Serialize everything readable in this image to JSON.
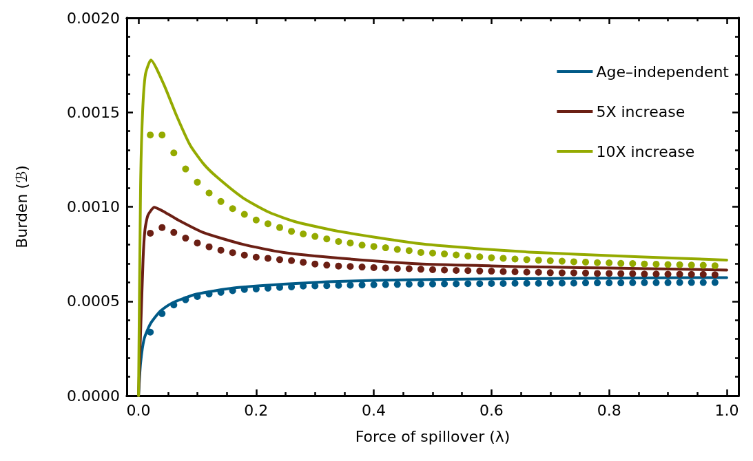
{
  "chart_data": {
    "type": "line",
    "xlabel": "Force of spillover (λ)",
    "ylabel": "Burden (ℬ)",
    "xlim": [
      -0.02,
      1.02
    ],
    "ylim": [
      0,
      0.002
    ],
    "xticks": [
      {
        "value": 0,
        "label": "0.0"
      },
      {
        "value": 0.05,
        "label": null
      },
      {
        "value": 0.1,
        "label": null
      },
      {
        "value": 0.15,
        "label": null
      },
      {
        "value": 0.2,
        "label": "0.2"
      },
      {
        "value": 0.25,
        "label": null
      },
      {
        "value": 0.3,
        "label": null
      },
      {
        "value": 0.35,
        "label": null
      },
      {
        "value": 0.4,
        "label": "0.4"
      },
      {
        "value": 0.45,
        "label": null
      },
      {
        "value": 0.5,
        "label": null
      },
      {
        "value": 0.55,
        "label": null
      },
      {
        "value": 0.6,
        "label": "0.6"
      },
      {
        "value": 0.65,
        "label": null
      },
      {
        "value": 0.7,
        "label": null
      },
      {
        "value": 0.75,
        "label": null
      },
      {
        "value": 0.8,
        "label": "0.8"
      },
      {
        "value": 0.85,
        "label": null
      },
      {
        "value": 0.9,
        "label": null
      },
      {
        "value": 0.95,
        "label": null
      },
      {
        "value": 1,
        "label": "1.0"
      }
    ],
    "yticks": [
      {
        "value": 0,
        "label": "0.0000"
      },
      {
        "value": 0.0001,
        "label": null
      },
      {
        "value": 0.0002,
        "label": null
      },
      {
        "value": 0.0003,
        "label": null
      },
      {
        "value": 0.0004,
        "label": null
      },
      {
        "value": 0.0005,
        "label": "0.0005"
      },
      {
        "value": 0.0006,
        "label": null
      },
      {
        "value": 0.0007,
        "label": null
      },
      {
        "value": 0.0008,
        "label": null
      },
      {
        "value": 0.0009,
        "label": null
      },
      {
        "value": 0.001,
        "label": "0.0010"
      },
      {
        "value": 0.0011,
        "label": null
      },
      {
        "value": 0.0012,
        "label": null
      },
      {
        "value": 0.0013,
        "label": null
      },
      {
        "value": 0.0014,
        "label": null
      },
      {
        "value": 0.0015,
        "label": "0.0015"
      },
      {
        "value": 0.0016,
        "label": null
      },
      {
        "value": 0.0017,
        "label": null
      },
      {
        "value": 0.0018,
        "label": null
      },
      {
        "value": 0.0019,
        "label": null
      },
      {
        "value": 0.002,
        "label": "0.0020"
      }
    ],
    "grid": false,
    "legend": "top right",
    "series": [
      {
        "name": "Age–independent",
        "marker": "none",
        "line_style": "solid",
        "color": "#005a87",
        "x": [
          0,
          0.0035,
          0.0098,
          0.0203,
          0.037,
          0.058,
          0.0996,
          0.162,
          0.246,
          0.321,
          0.4,
          0.5,
          0.6,
          0.7,
          0.8,
          0.9,
          1
        ],
        "values": [
          0,
          0.000173,
          0.000303,
          0.000381,
          0.000447,
          0.000492,
          0.000538,
          0.00057,
          0.00059,
          0.000603,
          0.00061,
          0.000615,
          0.000618,
          0.00062,
          0.000622,
          0.000624,
          0.000625
        ]
      },
      {
        "name": "5X increase",
        "marker": "none",
        "line_style": "solid",
        "color": "#6b1f14",
        "x": [
          0,
          0.0077,
          0.011,
          0.016,
          0.0269,
          0.0453,
          0.065,
          0.11,
          0.1776,
          0.245,
          0.346,
          0.477,
          0.6,
          0.664,
          0.75,
          0.851,
          1
        ],
        "values": [
          0,
          0.00072,
          0.00088,
          0.000955,
          0.000997,
          0.00097,
          0.000934,
          0.000864,
          0.000801,
          0.000759,
          0.000727,
          0.000698,
          0.000687,
          0.000682,
          0.000678,
          0.000673,
          0.000665
        ]
      },
      {
        "name": "10X increase",
        "marker": "none",
        "line_style": "solid",
        "color": "#94aa00",
        "x": [
          0,
          0.0035,
          0.0069,
          0.0117,
          0.021,
          0.0427,
          0.065,
          0.0876,
          0.11,
          0.1326,
          0.1776,
          0.2226,
          0.2676,
          0.346,
          0.477,
          0.57,
          0.664,
          0.75,
          0.851,
          1
        ],
        "values": [
          0,
          0.00111,
          0.0015,
          0.0017,
          0.001777,
          0.00165,
          0.00148,
          0.001327,
          0.001229,
          0.001159,
          0.001047,
          0.00097,
          0.00092,
          0.000867,
          0.000805,
          0.00078,
          0.00076,
          0.000748,
          0.000735,
          0.000718
        ]
      },
      {
        "type": "scatter",
        "marker": "circle",
        "color": "#005a87",
        "x": [
          0.02,
          0.04,
          0.06,
          0.08,
          0.1,
          0.12,
          0.14,
          0.16,
          0.18,
          0.2,
          0.22,
          0.24,
          0.26,
          0.28,
          0.3,
          0.32,
          0.34,
          0.36,
          0.38,
          0.4,
          0.42,
          0.44,
          0.46,
          0.48,
          0.5,
          0.52,
          0.54,
          0.56,
          0.58,
          0.6,
          0.62,
          0.64,
          0.66,
          0.68,
          0.7,
          0.72,
          0.74,
          0.76,
          0.78,
          0.8,
          0.82,
          0.84,
          0.86,
          0.88,
          0.9,
          0.92,
          0.94,
          0.96,
          0.98
        ],
        "values": [
          0.000336,
          0.000434,
          0.00048,
          0.000508,
          0.000525,
          0.000538,
          0.000547,
          0.000556,
          0.000562,
          0.000565,
          0.000569,
          0.000573,
          0.000576,
          0.00058,
          0.000581,
          0.000582,
          0.000584,
          0.000585,
          0.000586,
          0.000587,
          0.000588,
          0.000589,
          0.00059,
          0.000591,
          0.000591,
          0.000592,
          0.000592,
          0.000593,
          0.000593,
          0.000594,
          0.000594,
          0.000595,
          0.000595,
          0.000595,
          0.000596,
          0.000596,
          0.000596,
          0.000597,
          0.000597,
          0.000597,
          0.000597,
          0.000598,
          0.000598,
          0.000598,
          0.000598,
          0.000599,
          0.000599,
          0.000599,
          0.000599
        ]
      },
      {
        "type": "scatter",
        "marker": "circle",
        "color": "#6b1f14",
        "x": [
          0.02,
          0.04,
          0.06,
          0.08,
          0.1,
          0.12,
          0.14,
          0.16,
          0.18,
          0.2,
          0.22,
          0.24,
          0.26,
          0.28,
          0.3,
          0.32,
          0.34,
          0.36,
          0.38,
          0.4,
          0.42,
          0.44,
          0.46,
          0.48,
          0.5,
          0.52,
          0.54,
          0.56,
          0.58,
          0.6,
          0.62,
          0.64,
          0.66,
          0.68,
          0.7,
          0.72,
          0.74,
          0.76,
          0.78,
          0.8,
          0.82,
          0.84,
          0.86,
          0.88,
          0.9,
          0.92,
          0.94,
          0.96,
          0.98
        ],
        "values": [
          0.00086,
          0.00089,
          0.000864,
          0.000834,
          0.000808,
          0.000788,
          0.00077,
          0.000757,
          0.000744,
          0.000733,
          0.000727,
          0.00072,
          0.000715,
          0.000706,
          0.000697,
          0.000691,
          0.000686,
          0.000684,
          0.000681,
          0.000678,
          0.000676,
          0.000673,
          0.000672,
          0.000669,
          0.000667,
          0.000665,
          0.000663,
          0.000662,
          0.00066,
          0.000659,
          0.000657,
          0.000656,
          0.000654,
          0.000653,
          0.000651,
          0.00065,
          0.00065,
          0.000649,
          0.000647,
          0.000647,
          0.000646,
          0.000646,
          0.000644,
          0.000644,
          0.000643,
          0.000643,
          0.000642,
          0.000642,
          0.00064
        ]
      },
      {
        "type": "scatter",
        "marker": "circle",
        "color": "#94aa00",
        "x": [
          0.02,
          0.04,
          0.06,
          0.08,
          0.1,
          0.12,
          0.14,
          0.16,
          0.18,
          0.2,
          0.22,
          0.24,
          0.26,
          0.28,
          0.3,
          0.32,
          0.34,
          0.36,
          0.38,
          0.4,
          0.42,
          0.44,
          0.46,
          0.48,
          0.5,
          0.52,
          0.54,
          0.56,
          0.58,
          0.6,
          0.62,
          0.64,
          0.66,
          0.68,
          0.7,
          0.72,
          0.74,
          0.76,
          0.78,
          0.8,
          0.82,
          0.84,
          0.86,
          0.88,
          0.9,
          0.92,
          0.94,
          0.96,
          0.98
        ],
        "values": [
          0.00138,
          0.00138,
          0.001285,
          0.0012,
          0.00113,
          0.001073,
          0.001028,
          0.00099,
          0.00096,
          0.00093,
          0.00091,
          0.00089,
          0.00087,
          0.000856,
          0.000843,
          0.00083,
          0.000816,
          0.000808,
          0.000797,
          0.00079,
          0.000783,
          0.000774,
          0.000768,
          0.000758,
          0.000755,
          0.00075,
          0.000745,
          0.000739,
          0.000735,
          0.00073,
          0.000727,
          0.000723,
          0.00072,
          0.000717,
          0.000714,
          0.000712,
          0.000709,
          0.000707,
          0.000704,
          0.000703,
          0.0007,
          0.000699,
          0.000697,
          0.000696,
          0.000694,
          0.000693,
          0.000691,
          0.00069,
          0.000688
        ]
      }
    ]
  }
}
